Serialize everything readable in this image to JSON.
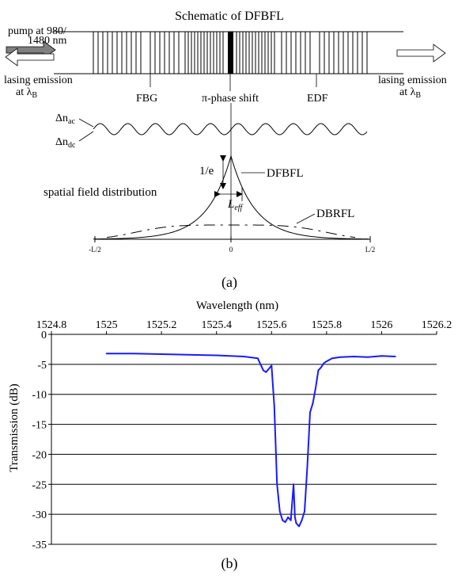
{
  "schematic": {
    "title": "Schematic of DFBFL",
    "pump_line1": "pump at 980/",
    "pump_line2": "1480 nm",
    "lasing_left_1": "lasing emission",
    "lasing_left_2": "at λ",
    "lasing_left_sub": "B",
    "lasing_right_1": "lasing emission",
    "lasing_right_2": "at λ",
    "lasing_right_sub": "B",
    "fbg_label": "FBG",
    "phase_shift_label": "π-phase shift",
    "edf_label": "EDF",
    "delta_n_ac": "Δn",
    "delta_n_ac_sub": "ac",
    "delta_n_dc": "Δn",
    "delta_n_dc_sub": "dc",
    "spatial_label": "spatial field distribution",
    "one_over_e": "1/e",
    "dfbfl_label": "DFBFL",
    "dbrfl_label": "DBRFL",
    "leff": "L",
    "leff_sub": "eff",
    "axis_ticks": [
      "-L/2",
      "0",
      "L/2"
    ],
    "caption": "(a)"
  },
  "chart_data": {
    "type": "line",
    "title": "",
    "xlabel": "Wavelength (nm)",
    "ylabel": "Transmission (dB)",
    "xlim": [
      1524.8,
      1526.2
    ],
    "ylim": [
      -35,
      0
    ],
    "x_ticks": [
      "1524.8",
      "1525",
      "1525.2",
      "1525.4",
      "1525.6",
      "1525.8",
      "1526",
      "1526.2"
    ],
    "y_ticks": [
      "0",
      "-5",
      "-10",
      "-15",
      "-20",
      "-25",
      "-30",
      "-35"
    ],
    "grid": "horizontal",
    "x_axis_position": "top",
    "series": [
      {
        "color": "#1a1aff",
        "x": [
          1525.0,
          1525.1,
          1525.2,
          1525.3,
          1525.4,
          1525.5,
          1525.55,
          1525.57,
          1525.58,
          1525.6,
          1525.61,
          1525.62,
          1525.63,
          1525.64,
          1525.65,
          1525.66,
          1525.67,
          1525.68,
          1525.685,
          1525.69,
          1525.7,
          1525.71,
          1525.72,
          1525.73,
          1525.74,
          1525.75,
          1525.76,
          1525.77,
          1525.78,
          1525.79,
          1525.8,
          1525.82,
          1525.85,
          1525.9,
          1525.95,
          1526.0,
          1526.05
        ],
        "y": [
          -3.2,
          -3.2,
          -3.3,
          -3.4,
          -3.5,
          -3.7,
          -4.0,
          -6.0,
          -6.3,
          -5.2,
          -12.0,
          -25.0,
          -29.5,
          -31.0,
          -31.3,
          -30.5,
          -31.0,
          -25.0,
          -30.5,
          -31.5,
          -32.0,
          -31.0,
          -29.5,
          -22.0,
          -13.0,
          -11.5,
          -9.0,
          -6.0,
          -5.5,
          -4.8,
          -4.5,
          -4.0,
          -3.8,
          -3.7,
          -3.8,
          -3.6,
          -3.7
        ]
      }
    ],
    "caption": "(b)"
  }
}
